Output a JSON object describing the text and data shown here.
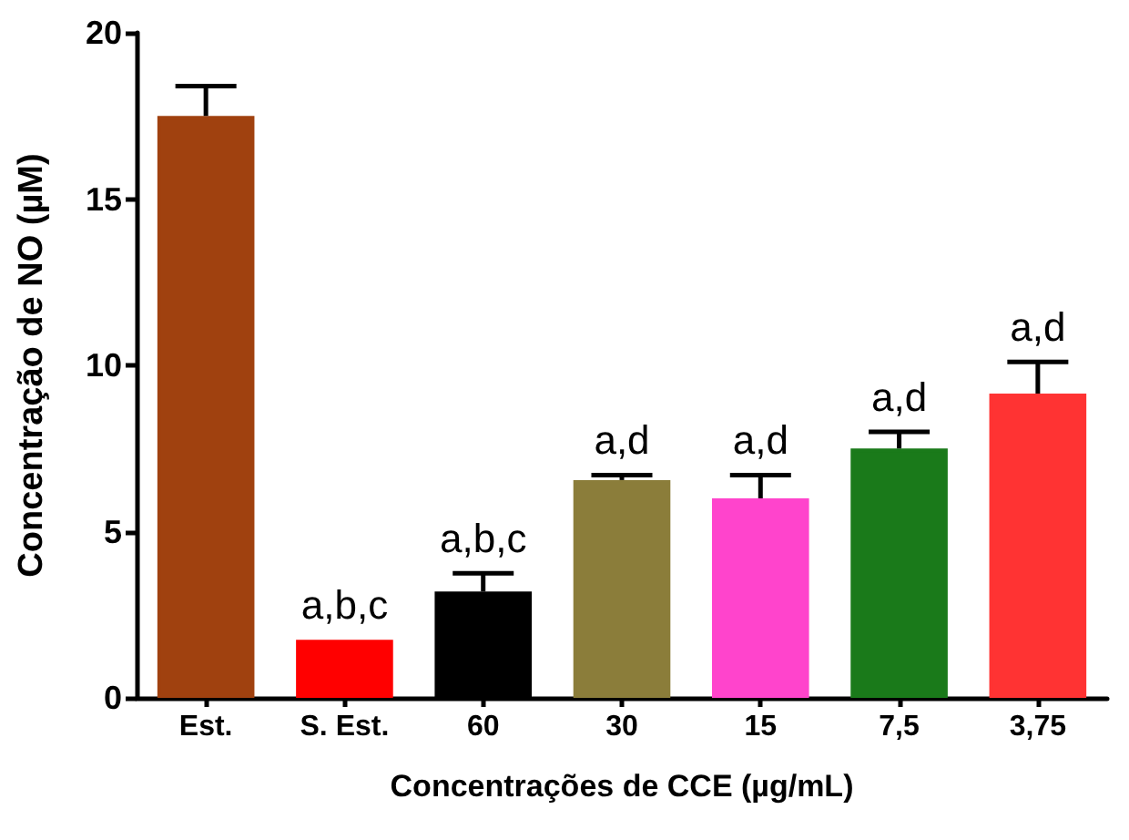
{
  "chart_data": {
    "type": "bar",
    "xlabel": "Concentrações de CCE (µg/mL)",
    "ylabel": "Concentração de NO (µM)",
    "categories": [
      "Est.",
      "S. Est.",
      "60",
      "30",
      "15",
      "7,5",
      "3,75"
    ],
    "values": [
      17.5,
      1.75,
      3.2,
      6.55,
      6.0,
      7.5,
      9.15
    ],
    "errors": [
      0.9,
      null,
      0.55,
      0.15,
      0.7,
      0.5,
      0.95
    ],
    "colors": [
      "#a0410f",
      "#ff0000",
      "#000000",
      "#8b7d3a",
      "#ff44cc",
      "#1a7a1a",
      "#ff3333"
    ],
    "ylim": [
      0,
      20
    ],
    "yticks": [
      0,
      5,
      10,
      15,
      20
    ],
    "annotations": [
      {
        "text": "a,b,c",
        "x": "S. Est.",
        "y": 1.75
      },
      {
        "text": "a,b,c",
        "x": "60",
        "y": 3.75
      },
      {
        "text": "a,d",
        "x": "30",
        "y": 6.7
      },
      {
        "text": "a,d",
        "x": "15",
        "y": 6.7
      },
      {
        "text": "a,d",
        "x": "7,5",
        "y": 8.0
      },
      {
        "text": "a,d",
        "x": "3,75",
        "y": 10.1
      }
    ]
  }
}
